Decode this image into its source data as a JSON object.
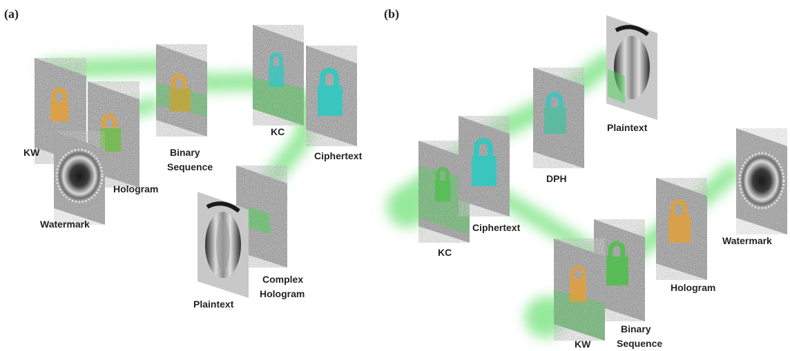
{
  "panels": {
    "a": {
      "letter": "(a)",
      "labels": {
        "kw": "KW",
        "hologram": "Hologram",
        "watermark": "Watermark",
        "binary_line1": "Binary",
        "binary_line2": "Sequence",
        "kc": "KC",
        "ciphertext": "Ciphertext",
        "plaintext": "Plaintext",
        "complex_line1": "Complex",
        "complex_line2": "Hologram"
      }
    },
    "b": {
      "letter": "(b)",
      "labels": {
        "plaintext": "Plaintext",
        "dph": "DPH",
        "kc": "KC",
        "ciphertext": "Ciphertext",
        "watermark": "Watermark",
        "hologram": "Hologram",
        "kw": "KW",
        "binary_line1": "Binary",
        "binary_line2": "Sequence"
      }
    }
  },
  "colors": {
    "beam": "#3fd84a",
    "lock_orange": "#e1a13a",
    "lock_cyan": "#2fc9c2",
    "lock_green": "#4cc04a",
    "noise_bg": "#8a8a8a"
  }
}
